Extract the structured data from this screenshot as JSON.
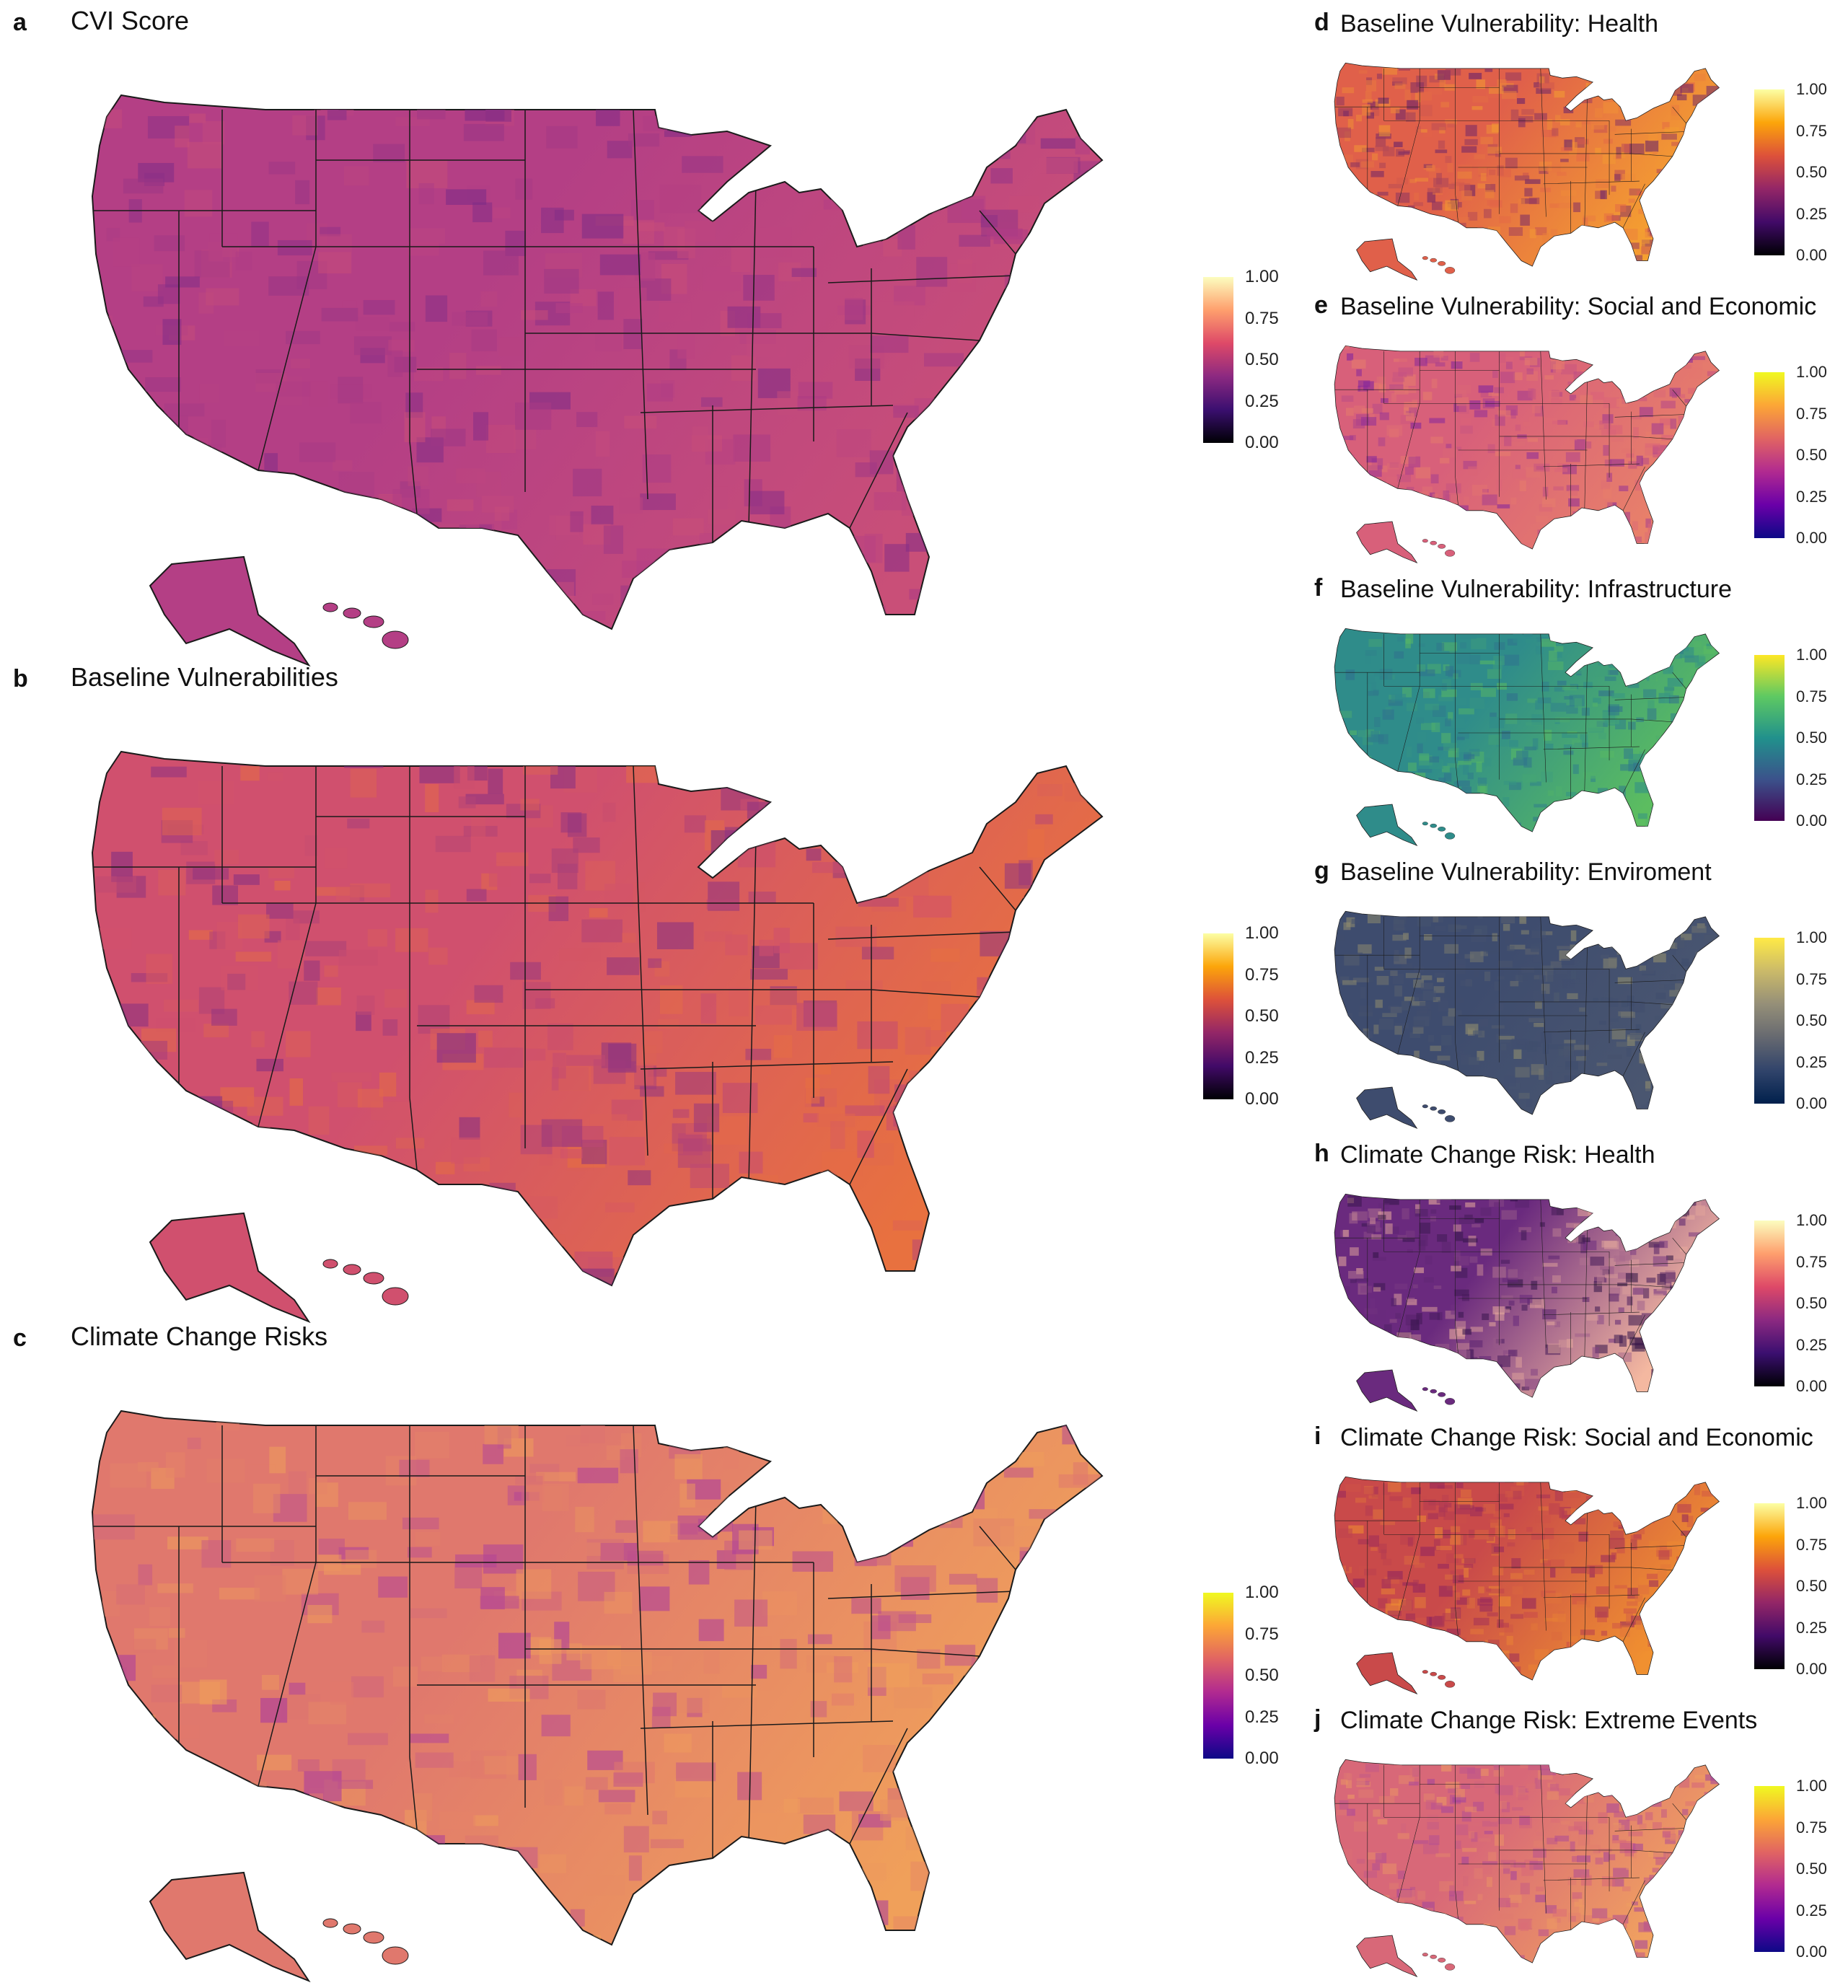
{
  "panels": [
    {
      "letter": "a",
      "title": "CVI Score"
    },
    {
      "letter": "b",
      "title": "Baseline Vulnerabilities"
    },
    {
      "letter": "c",
      "title": "Climate Change Risks"
    },
    {
      "letter": "d",
      "title": "Baseline Vulnerability: Health"
    },
    {
      "letter": "e",
      "title": "Baseline Vulnerability: Social and Economic"
    },
    {
      "letter": "f",
      "title": "Baseline Vulnerability: Infrastructure"
    },
    {
      "letter": "g",
      "title": "Baseline Vulnerability: Enviroment"
    },
    {
      "letter": "h",
      "title": "Climate Change Risk: Health"
    },
    {
      "letter": "i",
      "title": "Climate Change Risk: Social and Economic"
    },
    {
      "letter": "j",
      "title": "Climate Change Risk: Extreme Events"
    }
  ],
  "legend_ticks": [
    "1.00",
    "0.75",
    "0.50",
    "0.25",
    "0.00"
  ],
  "colors": {
    "a": {
      "fill": "#b43f85",
      "east": "#c94f78",
      "low": "#7a2a86",
      "scale": "magma"
    },
    "b": {
      "fill": "#d0506e",
      "east": "#e8713f",
      "low": "#7a2a86",
      "scale": "inferno"
    },
    "c": {
      "fill": "#e0786d",
      "east": "#f0a05a",
      "low": "#a535a3",
      "scale": "plasma"
    },
    "d": {
      "fill": "#e0604a",
      "east": "#f5a030",
      "low": "#5a1a6e",
      "scale": "inferno"
    },
    "e": {
      "fill": "#d8607a",
      "east": "#e8806a",
      "low": "#7a1fa0",
      "scale": "plasma"
    },
    "f": {
      "fill": "#2f8c8a",
      "east": "#5cbd60",
      "low": "#306a8f",
      "scale": "viridis"
    },
    "g": {
      "fill": "#3e4c6e",
      "east": "#4a5670",
      "low": "#9a9470",
      "scale": "cividis"
    },
    "h": {
      "fill": "#6a2a7e",
      "east": "#f4b8a0",
      "low": "#2a1040",
      "scale": "magma"
    },
    "i": {
      "fill": "#c94a4a",
      "east": "#f09030",
      "low": "#8a2060",
      "scale": "inferno"
    },
    "j": {
      "fill": "#d86878",
      "east": "#f0a060",
      "low": "#a040a0",
      "scale": "plasma"
    }
  }
}
